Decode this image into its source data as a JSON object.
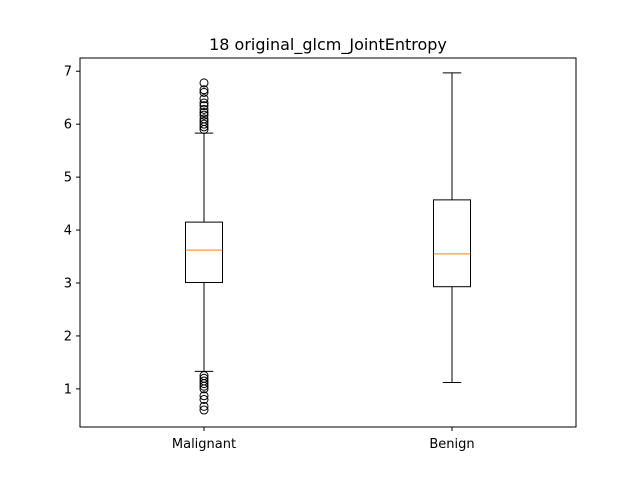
{
  "chart_data": {
    "type": "boxplot",
    "title": "18 original_glcm_JointEntropy",
    "xlabel": "",
    "ylabel": "",
    "categories": [
      "Malignant",
      "Benign"
    ],
    "ylim": [
      0.28,
      7.25
    ],
    "yticks": [
      "1",
      "2",
      "3",
      "4",
      "5",
      "6",
      "7"
    ],
    "grid": false,
    "colors": {
      "box": "#000000",
      "median": "#ff7f0e",
      "frame": "#000000"
    },
    "boxes": [
      {
        "name": "Malignant",
        "whisker_low": 1.33,
        "q1": 3.01,
        "median": 3.62,
        "q3": 4.15,
        "whisker_high": 5.83,
        "outliers": [
          0.6,
          0.67,
          0.8,
          0.87,
          1.0,
          1.05,
          1.1,
          1.15,
          1.2,
          1.25,
          5.9,
          5.95,
          6.0,
          6.05,
          6.1,
          6.17,
          6.22,
          6.28,
          6.35,
          6.4,
          6.48,
          6.6,
          6.65,
          6.78
        ]
      },
      {
        "name": "Benign",
        "whisker_low": 1.12,
        "q1": 2.93,
        "median": 3.55,
        "q3": 4.57,
        "whisker_high": 6.97,
        "outliers": []
      }
    ]
  }
}
